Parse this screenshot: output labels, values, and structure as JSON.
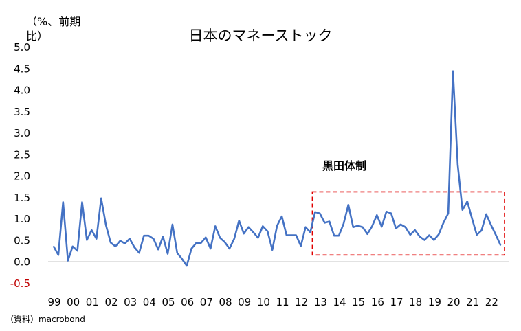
{
  "chart_data": {
    "type": "line",
    "title": "日本のマネーストック",
    "unit_label": "（%、前期比）",
    "source": "（資料）macrobond",
    "annotation": "黒田体制",
    "x_ticks": [
      "99",
      "00",
      "01",
      "02",
      "03",
      "04",
      "05",
      "06",
      "07",
      "08",
      "09",
      "10",
      "11",
      "12",
      "13",
      "14",
      "15",
      "16",
      "17",
      "18",
      "19",
      "20",
      "21",
      "22"
    ],
    "y_ticks": [
      "5.0",
      "4.5",
      "4.0",
      "3.5",
      "3.0",
      "2.5",
      "2.0",
      "1.5",
      "1.0",
      "0.5",
      "0.0",
      "-0.5"
    ],
    "ylim": [
      -0.5,
      5.0
    ],
    "xlim": [
      1999.0,
      2023.0
    ],
    "grid": false,
    "series": [
      {
        "color": "#4472C4",
        "values": [
          [
            1999.0,
            0.35
          ],
          [
            1999.25,
            0.15
          ],
          [
            1999.5,
            1.38
          ],
          [
            1999.75,
            0.02
          ],
          [
            2000.0,
            0.35
          ],
          [
            2000.25,
            0.25
          ],
          [
            2000.5,
            1.38
          ],
          [
            2000.75,
            0.5
          ],
          [
            2001.0,
            0.73
          ],
          [
            2001.25,
            0.53
          ],
          [
            2001.5,
            1.47
          ],
          [
            2001.75,
            0.85
          ],
          [
            2002.0,
            0.44
          ],
          [
            2002.25,
            0.35
          ],
          [
            2002.5,
            0.48
          ],
          [
            2002.75,
            0.42
          ],
          [
            2003.0,
            0.53
          ],
          [
            2003.25,
            0.33
          ],
          [
            2003.5,
            0.2
          ],
          [
            2003.75,
            0.6
          ],
          [
            2004.0,
            0.6
          ],
          [
            2004.25,
            0.53
          ],
          [
            2004.5,
            0.28
          ],
          [
            2004.75,
            0.58
          ],
          [
            2005.0,
            0.18
          ],
          [
            2005.25,
            0.86
          ],
          [
            2005.5,
            0.2
          ],
          [
            2005.75,
            0.06
          ],
          [
            2006.0,
            -0.1
          ],
          [
            2006.25,
            0.3
          ],
          [
            2006.5,
            0.43
          ],
          [
            2006.75,
            0.43
          ],
          [
            2007.0,
            0.56
          ],
          [
            2007.25,
            0.3
          ],
          [
            2007.5,
            0.82
          ],
          [
            2007.75,
            0.55
          ],
          [
            2008.0,
            0.45
          ],
          [
            2008.25,
            0.3
          ],
          [
            2008.5,
            0.53
          ],
          [
            2008.75,
            0.95
          ],
          [
            2009.0,
            0.65
          ],
          [
            2009.25,
            0.8
          ],
          [
            2009.5,
            0.68
          ],
          [
            2009.75,
            0.55
          ],
          [
            2010.0,
            0.82
          ],
          [
            2010.25,
            0.7
          ],
          [
            2010.5,
            0.27
          ],
          [
            2010.75,
            0.83
          ],
          [
            2011.0,
            1.05
          ],
          [
            2011.25,
            0.61
          ],
          [
            2011.5,
            0.61
          ],
          [
            2011.75,
            0.61
          ],
          [
            2012.0,
            0.36
          ],
          [
            2012.25,
            0.8
          ],
          [
            2012.5,
            0.68
          ],
          [
            2012.75,
            1.15
          ],
          [
            2013.0,
            1.12
          ],
          [
            2013.25,
            0.9
          ],
          [
            2013.5,
            0.93
          ],
          [
            2013.75,
            0.6
          ],
          [
            2014.0,
            0.6
          ],
          [
            2014.25,
            0.88
          ],
          [
            2014.5,
            1.32
          ],
          [
            2014.75,
            0.8
          ],
          [
            2015.0,
            0.83
          ],
          [
            2015.25,
            0.8
          ],
          [
            2015.5,
            0.64
          ],
          [
            2015.75,
            0.82
          ],
          [
            2016.0,
            1.08
          ],
          [
            2016.25,
            0.81
          ],
          [
            2016.5,
            1.16
          ],
          [
            2016.75,
            1.12
          ],
          [
            2017.0,
            0.77
          ],
          [
            2017.25,
            0.86
          ],
          [
            2017.5,
            0.8
          ],
          [
            2017.75,
            0.62
          ],
          [
            2018.0,
            0.73
          ],
          [
            2018.25,
            0.58
          ],
          [
            2018.5,
            0.5
          ],
          [
            2018.75,
            0.61
          ],
          [
            2019.0,
            0.5
          ],
          [
            2019.25,
            0.63
          ],
          [
            2019.5,
            0.9
          ],
          [
            2019.75,
            1.12
          ],
          [
            2020.0,
            4.43
          ],
          [
            2020.25,
            2.25
          ],
          [
            2020.5,
            1.2
          ],
          [
            2020.75,
            1.4
          ],
          [
            2021.0,
            1.0
          ],
          [
            2021.25,
            0.62
          ],
          [
            2021.5,
            0.72
          ],
          [
            2021.75,
            1.1
          ],
          [
            2022.0,
            0.85
          ],
          [
            2022.25,
            0.62
          ],
          [
            2022.5,
            0.38
          ]
        ]
      }
    ],
    "highlight_box": {
      "x": [
        2012.75,
        2023.0
      ],
      "y": [
        0.15,
        1.62
      ],
      "color": "#E00000",
      "style": "dashed"
    },
    "colors": {
      "neg_tick": "#C00000",
      "zero_line": "#D9D9D9"
    }
  }
}
